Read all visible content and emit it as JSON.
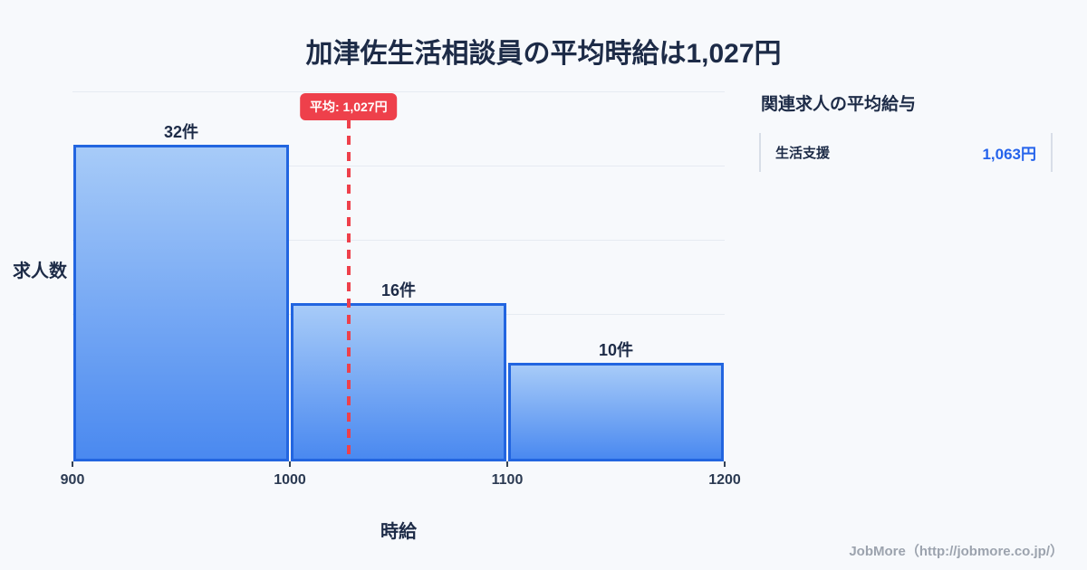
{
  "title": "加津佐生活相談員の平均時給は1,027円",
  "chart_data": {
    "type": "bar",
    "subtype": "histogram",
    "title": "加津佐生活相談員の平均時給は1,027円",
    "xlabel": "時給",
    "ylabel": "求人数",
    "x_range": [
      900,
      1200
    ],
    "bin_width": 100,
    "x_ticks": [
      "900",
      "1000",
      "1100",
      "1200"
    ],
    "grid": "horizontal",
    "legend": "none",
    "bins": [
      {
        "range": [
          900,
          1000
        ],
        "count": 32,
        "label": "32件"
      },
      {
        "range": [
          1000,
          1100
        ],
        "count": 16,
        "label": "16件"
      },
      {
        "range": [
          1100,
          1200
        ],
        "count": 10,
        "label": "10件"
      }
    ],
    "average": {
      "value": 1027,
      "label": "平均: 1,027円"
    },
    "colors": {
      "bar_fill_top": "#a7cbf8",
      "bar_fill_bottom": "#4a89f0",
      "bar_border": "#2265e0",
      "average_line": "#ee404b",
      "background": "#f7f9fc",
      "text_dark": "#1d2b47"
    }
  },
  "side_panel": {
    "title": "関連求人の平均給与",
    "rows": [
      {
        "label": "生活支援",
        "value": "1,063円",
        "value_color": "#2563eb"
      }
    ]
  },
  "watermark": "JobMore（http://jobmore.co.jp/）"
}
